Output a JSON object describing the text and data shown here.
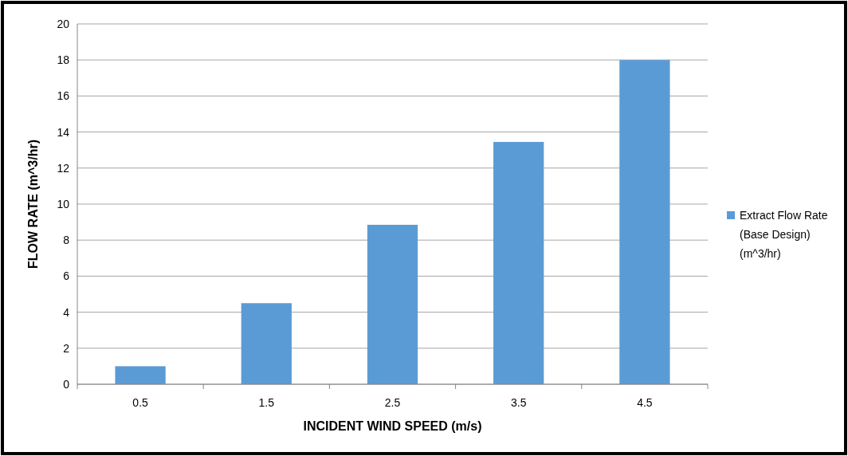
{
  "chart_data": {
    "type": "bar",
    "xlabel": "INCIDENT WIND SPEED (m/s)",
    "ylabel": "FLOW RATE (m^3/hr)",
    "categories": [
      "0.5",
      "1.5",
      "2.5",
      "3.5",
      "4.5"
    ],
    "series": [
      {
        "name": "Extract Flow Rate (Base Design) (m^3/hr)",
        "color": "#5b9bd5",
        "values": [
          1,
          4.5,
          8.85,
          13.45,
          18
        ]
      }
    ],
    "ylim": [
      0,
      20
    ],
    "yticks": [
      0,
      2,
      4,
      6,
      8,
      10,
      12,
      14,
      16,
      18,
      20
    ],
    "grid": "y",
    "legend": "right"
  }
}
